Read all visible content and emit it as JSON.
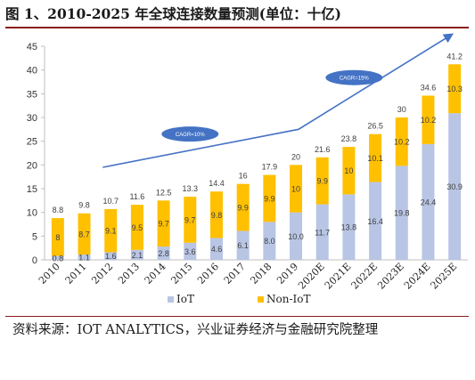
{
  "title": "图 1、2010-2025 年全球连接数量预测(单位：十亿)",
  "source": "资料来源：IOT ANALYTICS，兴业证券经济与金融研究院整理",
  "colors": {
    "iot": "#b8c5e4",
    "non_iot": "#ffc000",
    "arrow": "#4472c4",
    "ellipse": "#4472c4",
    "axis": "#bfbfbf",
    "text": "#333333"
  },
  "chart_data": {
    "type": "bar",
    "stacked": true,
    "categories": [
      "2010",
      "2011",
      "2012",
      "2013",
      "2014",
      "2015",
      "2016",
      "2017",
      "2018",
      "2019",
      "2020E",
      "2021E",
      "2022E",
      "2023E",
      "2024E",
      "2025E"
    ],
    "series": [
      {
        "name": "IoT",
        "values": [
          0.8,
          1.1,
          1.6,
          2.1,
          2.8,
          3.6,
          4.6,
          6.1,
          8.0,
          10.0,
          11.7,
          13.8,
          16.4,
          19.8,
          24.4,
          30.9
        ]
      },
      {
        "name": "Non-IoT",
        "values": [
          8,
          8.7,
          9.1,
          9.5,
          9.7,
          9.7,
          9.8,
          9.9,
          9.9,
          10,
          9.9,
          10,
          10.1,
          10.2,
          10.2,
          10.3
        ]
      }
    ],
    "value_labels": {
      "iot": [
        "0.8",
        "1.1",
        "1.6",
        "2.1",
        "2.8",
        "3.6",
        "4.6",
        "6.1",
        "8.0",
        "10.0",
        "11.7",
        "13.8",
        "16.4",
        "19.8",
        "24.4",
        "30.9"
      ],
      "non_iot": [
        "8",
        "8.7",
        "9.1",
        "9.5",
        "9.7",
        "9.7",
        "9.8",
        "9.9",
        "9.9",
        "10",
        "9.9",
        "10",
        "10.1",
        "10.2",
        "10.2",
        "10.3"
      ]
    },
    "totals": [
      "8.8",
      "9.8",
      "10.7",
      "11.6",
      "12.5",
      "13.3",
      "14.4",
      "16",
      "17.9",
      "20",
      "21.6",
      "23.8",
      "26.5",
      "30",
      "34.6",
      "41.2"
    ],
    "ylim": [
      0,
      45
    ],
    "yticks": [
      0,
      5,
      10,
      15,
      20,
      25,
      30,
      35,
      40,
      45
    ],
    "legend": [
      "IoT",
      "Non-IoT"
    ],
    "legend_position": "bottom",
    "annotations": [
      {
        "text": "CAGR=10%"
      },
      {
        "text": "CAGR=15%"
      }
    ],
    "grid": false
  }
}
